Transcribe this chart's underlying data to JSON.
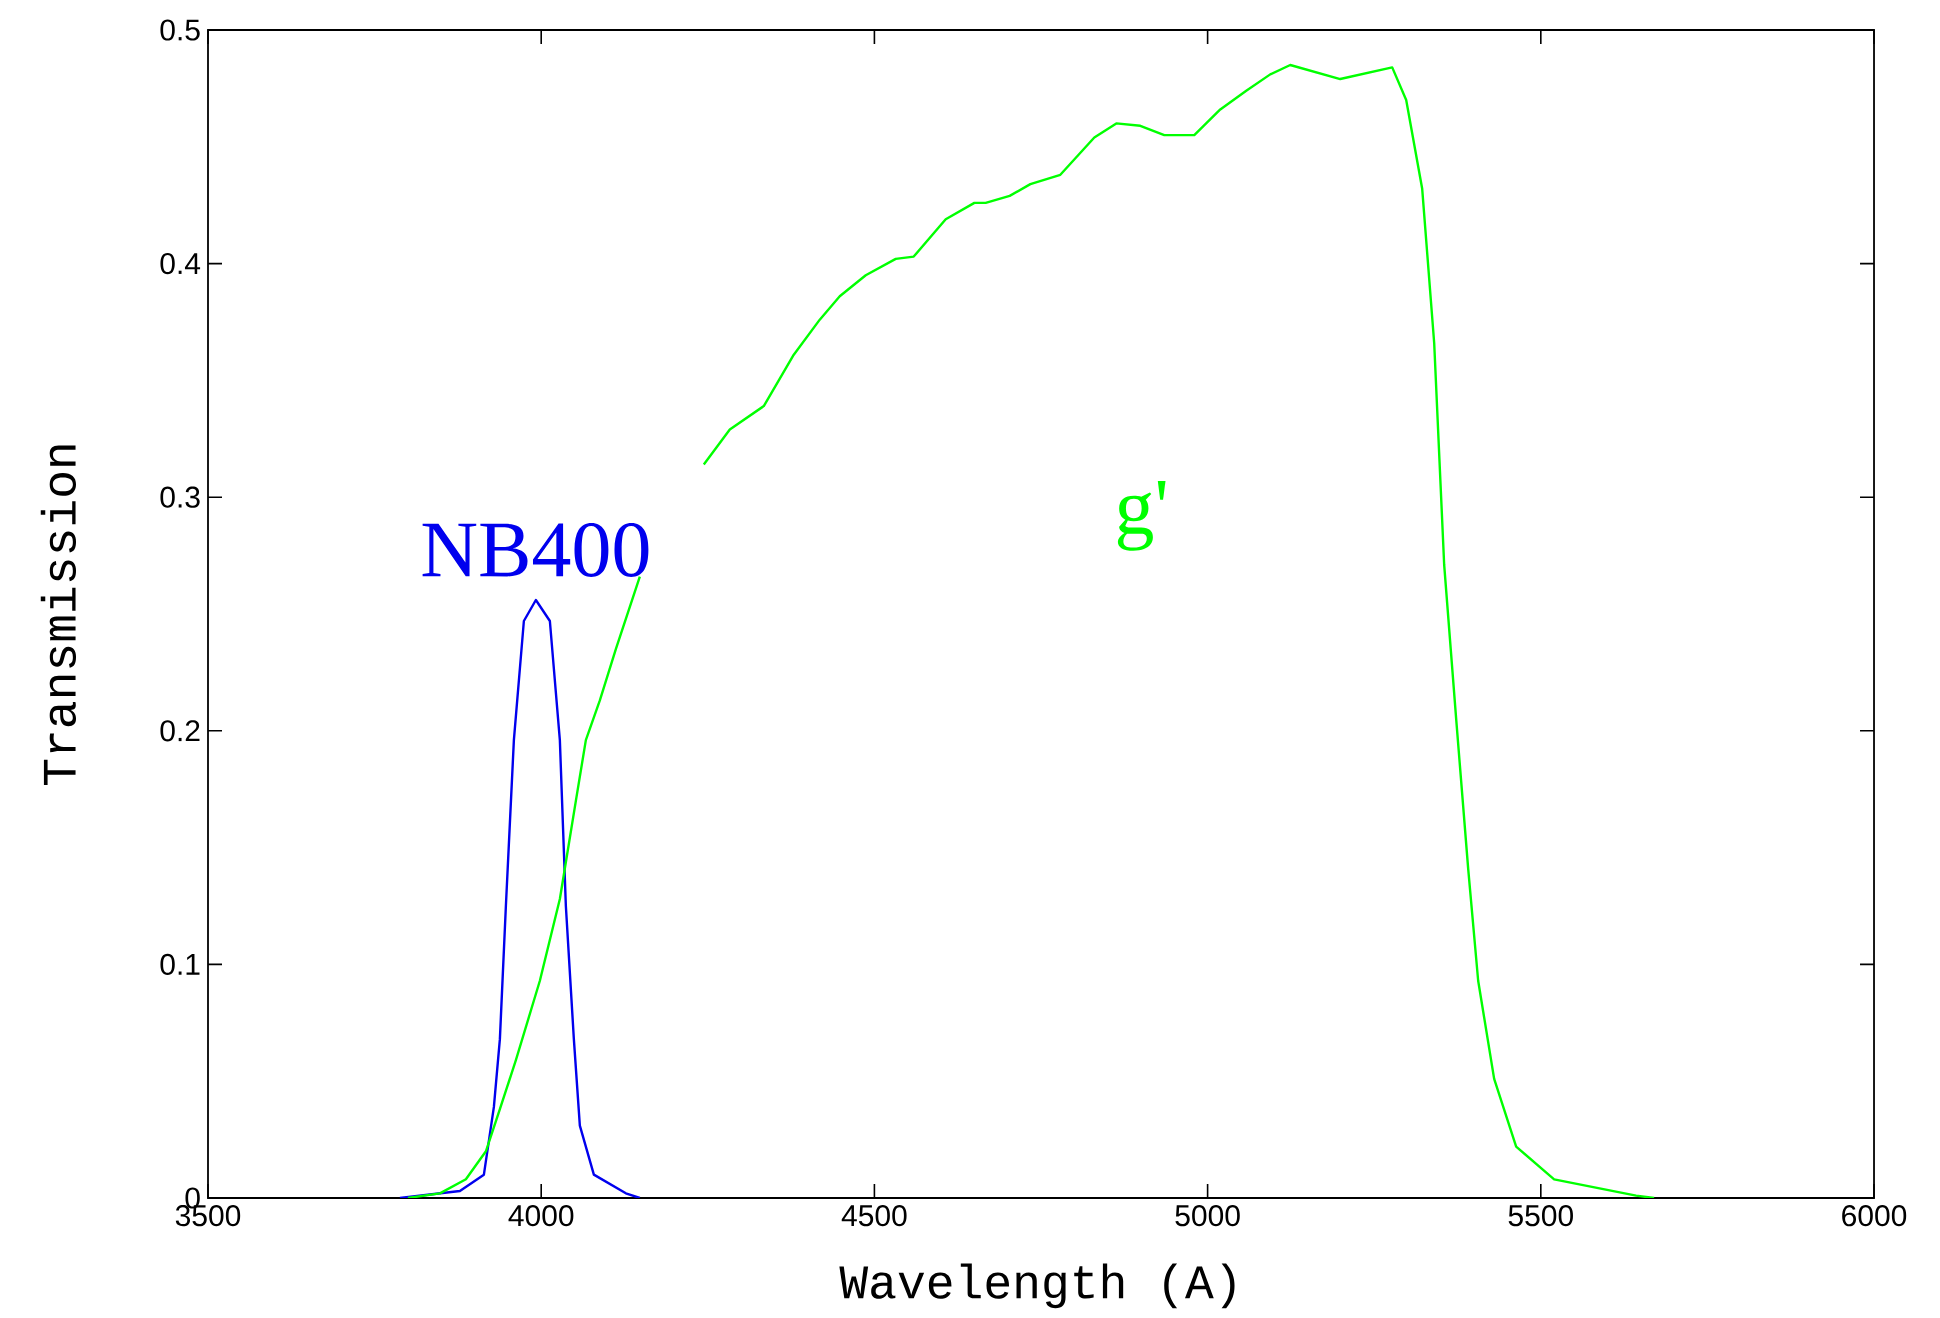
{
  "chart_data": {
    "type": "line",
    "xlabel": "Wavelength (A)",
    "ylabel": "Transmission",
    "xlim": [
      3500,
      6000
    ],
    "xticks": [
      3500,
      4000,
      4500,
      5000,
      5500,
      6000
    ],
    "ylim": [
      0,
      0.5
    ],
    "yticks": [
      0,
      0.1,
      0.2,
      0.3,
      0.4,
      0.5
    ],
    "grid": false,
    "marker": "none",
    "line_style": "solid",
    "series": [
      {
        "name": "NB400",
        "color": "#0000ee",
        "x": [
          3788,
          3878,
          3914,
          3929,
          3938,
          3947,
          3959,
          3974,
          3992,
          4013,
          4028,
          4037,
          4049,
          4058,
          4079,
          4127,
          4148
        ],
        "values": [
          0,
          0.003,
          0.01,
          0.039,
          0.068,
          0.125,
          0.196,
          0.247,
          0.256,
          0.247,
          0.196,
          0.125,
          0.068,
          0.031,
          0.01,
          0.002,
          0
        ]
      },
      {
        "name": "g'",
        "color": "#00ff00",
        "x": [
          3800,
          3848,
          3887,
          3917,
          3938,
          3962,
          3998,
          4028,
          4052,
          4067,
          4088,
          4112,
          4148,
          4200,
          4244,
          4283,
          4334,
          4379,
          4418,
          4448,
          4487,
          4532,
          4559,
          4607,
          4650,
          4667,
          4703,
          4734,
          4779,
          4830,
          4863,
          4899,
          4935,
          4980,
          5019,
          5058,
          5094,
          5124,
          5199,
          5277,
          5298,
          5322,
          5340,
          5355,
          5373,
          5391,
          5406,
          5430,
          5463,
          5520,
          5643,
          5670
        ],
        "values": [
          0,
          0.002,
          0.008,
          0.02,
          0.038,
          0.059,
          0.093,
          0.128,
          0.17,
          0.196,
          0.213,
          0.235,
          0.266,
          null,
          0.314,
          0.329,
          0.339,
          0.361,
          0.376,
          0.386,
          0.395,
          0.402,
          0.403,
          0.419,
          0.426,
          0.426,
          0.429,
          0.434,
          0.438,
          0.454,
          0.46,
          0.459,
          0.455,
          0.455,
          0.466,
          0.474,
          0.481,
          0.485,
          0.479,
          0.484,
          0.47,
          0.432,
          0.366,
          0.271,
          0.205,
          0.141,
          0.093,
          0.051,
          0.022,
          0.008,
          0.001,
          0
        ]
      }
    ]
  }
}
